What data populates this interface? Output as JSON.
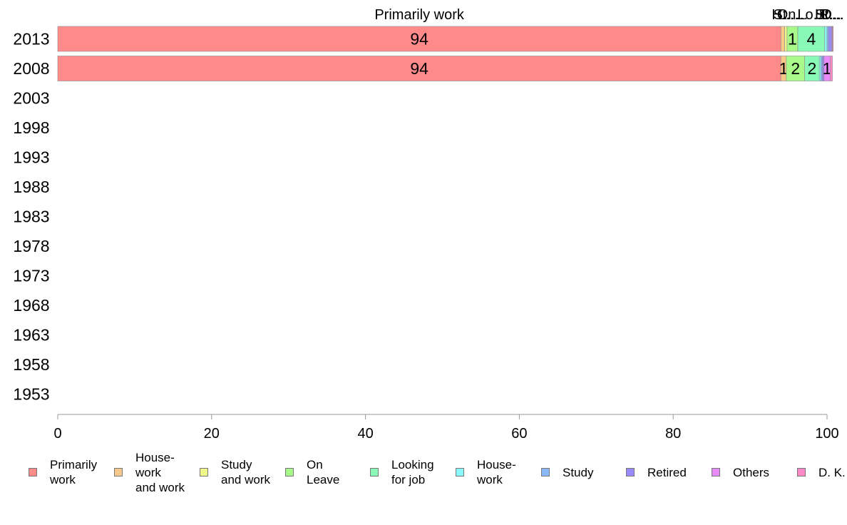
{
  "chart_data": {
    "type": "bar",
    "orientation": "horizontal-stacked",
    "title": "",
    "xlabel": "",
    "ylabel": "",
    "xlim": [
      0,
      100
    ],
    "x_ticks": [
      "0",
      "20",
      "40",
      "60",
      "80",
      "100"
    ],
    "categories": [
      "2013",
      "2008",
      "2003",
      "1998",
      "1993",
      "1988",
      "1983",
      "1978",
      "1973",
      "1968",
      "1963",
      "1958",
      "1953"
    ],
    "series": [
      {
        "name": "Primarily work",
        "legend_label": "Primarily\nwork",
        "color": "#FF8A8A",
        "values": [
          94,
          94,
          null,
          null,
          null,
          null,
          null,
          null,
          null,
          null,
          null,
          null,
          null
        ],
        "labels": [
          "94",
          "94"
        ]
      },
      {
        "name": "House-work and work",
        "legend_label": "House-\nwork\nand work",
        "color": "#F7C98A",
        "values": [
          0.5,
          0.7,
          null,
          null,
          null,
          null,
          null,
          null,
          null,
          null,
          null,
          null,
          null
        ],
        "labels": [
          "",
          "1"
        ]
      },
      {
        "name": "Study and work",
        "legend_label": "Study\nand work",
        "color": "#EEF98A",
        "values": [
          0.3,
          0,
          null,
          null,
          null,
          null,
          null,
          null,
          null,
          null,
          null,
          null,
          null
        ],
        "labels": [
          "",
          ""
        ]
      },
      {
        "name": "On Leave",
        "legend_label": "On\nLeave",
        "color": "#A8F98A",
        "values": [
          1.4,
          2.4,
          null,
          null,
          null,
          null,
          null,
          null,
          null,
          null,
          null,
          null,
          null
        ],
        "labels": [
          "1",
          "2"
        ]
      },
      {
        "name": "Looking for job",
        "legend_label": "Looking\nfor job",
        "color": "#8AF9B8",
        "values": [
          3.5,
          1.9,
          null,
          null,
          null,
          null,
          null,
          null,
          null,
          null,
          null,
          null,
          null
        ],
        "labels": [
          "4",
          "2"
        ]
      },
      {
        "name": "House-work",
        "legend_label": "House-\nwork",
        "color": "#8AF9F9",
        "values": [
          0.3,
          0.2,
          null,
          null,
          null,
          null,
          null,
          null,
          null,
          null,
          null,
          null,
          null
        ],
        "labels": [
          "",
          ""
        ]
      },
      {
        "name": "Study",
        "legend_label": "Study",
        "color": "#8AB8F9",
        "values": [
          0.2,
          0.2,
          null,
          null,
          null,
          null,
          null,
          null,
          null,
          null,
          null,
          null,
          null
        ],
        "labels": [
          "",
          ""
        ]
      },
      {
        "name": "Retired",
        "legend_label": "Retired",
        "color": "#9A8AF9",
        "values": [
          0.4,
          0.2,
          null,
          null,
          null,
          null,
          null,
          null,
          null,
          null,
          null,
          null,
          null
        ],
        "labels": [
          "",
          ""
        ]
      },
      {
        "name": "Others",
        "legend_label": "Others",
        "color": "#E88AF9",
        "values": [
          0.1,
          0.8,
          null,
          null,
          null,
          null,
          null,
          null,
          null,
          null,
          null,
          null,
          null
        ],
        "labels": [
          "",
          "1"
        ]
      },
      {
        "name": "D. K.",
        "legend_label": "D. K.",
        "color": "#FF8AC8",
        "values": [
          0.1,
          0.3,
          null,
          null,
          null,
          null,
          null,
          null,
          null,
          null,
          null,
          null,
          null
        ],
        "labels": [
          "",
          ""
        ]
      }
    ],
    "top_labels": [
      "Primarily work",
      "H...",
      "St...",
      "On...",
      "Lo...",
      "H...",
      "St...",
      "R...",
      "O...",
      "D..."
    ],
    "grid": false,
    "legend_position": "bottom"
  }
}
